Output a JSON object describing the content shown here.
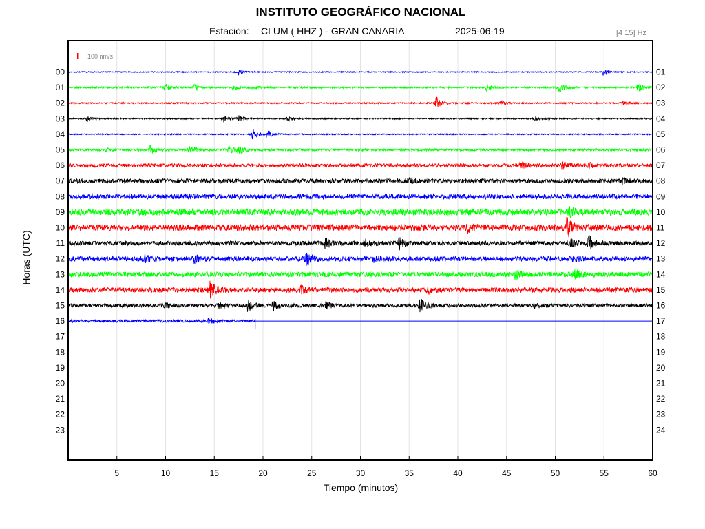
{
  "title": "INSTITUTO GEOGRÁFICO NACIONAL",
  "station_label": "Estación:",
  "station": "CLUM ( HHZ ) - GRAN CANARIA",
  "date": "2025-06-19",
  "frequency_band": "[4 15] Hz",
  "scale_label": "100 nm/s",
  "colors": {
    "blue": "#0000ff",
    "green": "#00ff00",
    "red": "#ff0000",
    "black": "#000000"
  },
  "chart_data": {
    "type": "line",
    "title": "INSTITUTO GEOGRÁFICO NACIONAL",
    "xlabel": "Tiempo (minutos)",
    "ylabel": "Horas (UTC)",
    "xlim": [
      0,
      60
    ],
    "x_ticks": [
      5,
      10,
      15,
      20,
      25,
      30,
      35,
      40,
      45,
      50,
      55,
      60
    ],
    "left_ticks": [
      "00",
      "01",
      "02",
      "03",
      "04",
      "05",
      "06",
      "07",
      "08",
      "09",
      "10",
      "11",
      "12",
      "13",
      "14",
      "15",
      "16",
      "17",
      "18",
      "19",
      "20",
      "21",
      "22",
      "23"
    ],
    "right_ticks": [
      "01",
      "02",
      "03",
      "04",
      "05",
      "06",
      "07",
      "08",
      "09",
      "10",
      "11",
      "12",
      "13",
      "14",
      "15",
      "16",
      "17",
      "18",
      "19",
      "20",
      "21",
      "22",
      "23",
      "24"
    ],
    "grid": true,
    "series": [
      {
        "hour": 0,
        "color": "blue",
        "noise": 0.8,
        "end_minute": 60,
        "events": [
          [
            17.5,
            4
          ],
          [
            55,
            4
          ]
        ]
      },
      {
        "hour": 1,
        "color": "green",
        "noise": 1.2,
        "end_minute": 60,
        "events": [
          [
            10,
            5
          ],
          [
            13,
            4
          ],
          [
            17,
            3
          ],
          [
            19,
            2.5
          ],
          [
            43,
            4
          ],
          [
            50.5,
            6
          ],
          [
            58.5,
            6
          ]
        ]
      },
      {
        "hour": 2,
        "color": "red",
        "noise": 1.0,
        "end_minute": 60,
        "events": [
          [
            37.8,
            9
          ],
          [
            44.5,
            3
          ],
          [
            57,
            2.5
          ]
        ]
      },
      {
        "hour": 3,
        "color": "black",
        "noise": 1.0,
        "end_minute": 60,
        "events": [
          [
            2,
            4
          ],
          [
            16,
            4.5
          ],
          [
            17.5,
            4
          ],
          [
            22.5,
            3
          ],
          [
            48,
            3
          ]
        ]
      },
      {
        "hour": 4,
        "color": "blue",
        "noise": 0.9,
        "end_minute": 60,
        "events": [
          [
            19,
            8.5
          ],
          [
            20.5,
            5
          ]
        ]
      },
      {
        "hour": 5,
        "color": "green",
        "noise": 1.6,
        "end_minute": 60,
        "events": [
          [
            4,
            3
          ],
          [
            8.5,
            5
          ],
          [
            12.5,
            9
          ],
          [
            17.5,
            7
          ],
          [
            16.5,
            5
          ]
        ]
      },
      {
        "hour": 6,
        "color": "red",
        "noise": 2.5,
        "end_minute": 60,
        "events": [
          [
            46.5,
            4
          ],
          [
            50.8,
            5
          ],
          [
            53.5,
            3
          ]
        ]
      },
      {
        "hour": 7,
        "color": "black",
        "noise": 3.0,
        "end_minute": 60,
        "events": [
          [
            35,
            3
          ],
          [
            57,
            3
          ]
        ]
      },
      {
        "hour": 8,
        "color": "blue",
        "noise": 3.5,
        "end_minute": 60,
        "events": []
      },
      {
        "hour": 9,
        "color": "green",
        "noise": 4.5,
        "end_minute": 60,
        "events": [
          [
            51.5,
            7
          ]
        ]
      },
      {
        "hour": 10,
        "color": "red",
        "noise": 4.5,
        "end_minute": 60,
        "events": [
          [
            41,
            6
          ],
          [
            51.3,
            12
          ]
        ]
      },
      {
        "hour": 11,
        "color": "black",
        "noise": 3.0,
        "end_minute": 60,
        "events": [
          [
            26.5,
            7
          ],
          [
            30.5,
            6
          ],
          [
            34,
            8
          ],
          [
            51.5,
            8
          ],
          [
            53.5,
            9
          ]
        ]
      },
      {
        "hour": 12,
        "color": "blue",
        "noise": 3.5,
        "end_minute": 60,
        "events": [
          [
            8,
            5
          ],
          [
            13,
            5
          ],
          [
            24.5,
            9
          ],
          [
            31.5,
            5
          ],
          [
            51.8,
            4
          ]
        ]
      },
      {
        "hour": 13,
        "color": "green",
        "noise": 3.5,
        "end_minute": 60,
        "events": [
          [
            46,
            5
          ],
          [
            52,
            7
          ]
        ]
      },
      {
        "hour": 14,
        "color": "red",
        "noise": 3.5,
        "end_minute": 60,
        "events": [
          [
            14.7,
            12
          ],
          [
            24,
            4
          ],
          [
            37,
            4
          ]
        ]
      },
      {
        "hour": 15,
        "color": "black",
        "noise": 2.5,
        "end_minute": 60,
        "events": [
          [
            10,
            4
          ],
          [
            15.5,
            4
          ],
          [
            18.5,
            8
          ],
          [
            21,
            7
          ],
          [
            26.5,
            5
          ],
          [
            36.2,
            9
          ],
          [
            48,
            3
          ]
        ]
      },
      {
        "hour": 16,
        "color": "blue",
        "noise": 2.0,
        "end_minute": 19.2,
        "events": [
          [
            14.5,
            3
          ]
        ]
      }
    ]
  }
}
